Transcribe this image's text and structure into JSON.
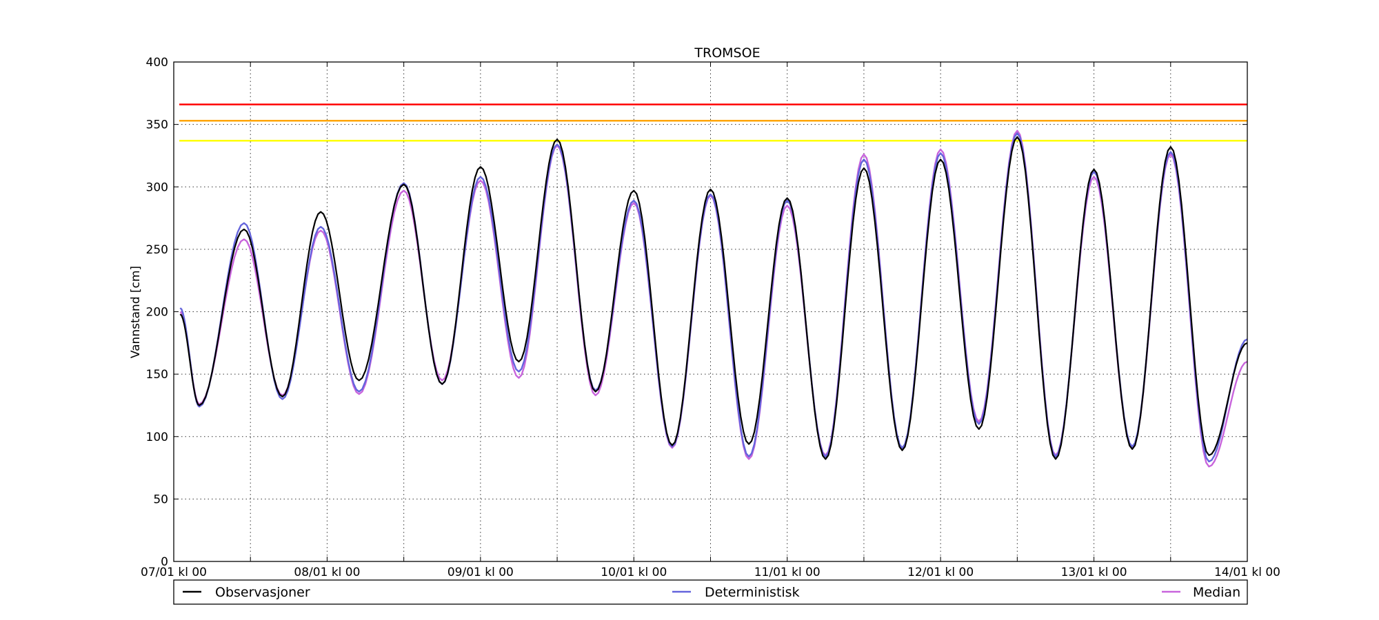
{
  "chart_data": {
    "type": "line",
    "title": "TROMSOE",
    "xlabel": "",
    "ylabel": "Vannstand [cm]",
    "ylim": [
      0,
      400
    ],
    "yticks": [
      0,
      50,
      100,
      150,
      200,
      250,
      300,
      350,
      400
    ],
    "xlim": [
      0,
      168
    ],
    "xticks": [
      {
        "value": 0,
        "label": "07/01 kl 00"
      },
      {
        "value": 24,
        "label": "08/01 kl 00"
      },
      {
        "value": 48,
        "label": "09/01 kl 00"
      },
      {
        "value": 72,
        "label": "10/01 kl 00"
      },
      {
        "value": 96,
        "label": "11/01 kl 00"
      },
      {
        "value": 120,
        "label": "12/01 kl 00"
      },
      {
        "value": 144,
        "label": "13/01 kl 00"
      },
      {
        "value": 168,
        "label": "14/01 kl 00"
      }
    ],
    "minor_xticks": [
      12,
      36,
      60,
      84,
      108,
      132,
      156
    ],
    "grid": true,
    "legend_position": "below",
    "thresholds": [
      {
        "value": 366,
        "color": "#ff0000"
      },
      {
        "value": 353,
        "color": "#ffa500"
      },
      {
        "value": 337,
        "color": "#ffff00"
      }
    ],
    "series": [
      {
        "name": "Observasjoner",
        "color": "#000000",
        "extrema": [
          [
            1,
            198
          ],
          [
            4,
            125
          ],
          [
            11,
            266
          ],
          [
            17,
            132
          ],
          [
            23,
            280
          ],
          [
            29,
            145
          ],
          [
            36,
            302
          ],
          [
            42,
            142
          ],
          [
            48,
            316
          ],
          [
            54,
            160
          ],
          [
            60,
            338
          ],
          [
            66,
            136
          ],
          [
            72,
            297
          ],
          [
            78,
            93
          ],
          [
            84,
            298
          ],
          [
            90,
            94
          ],
          [
            96,
            291
          ],
          [
            102,
            82
          ],
          [
            108,
            315
          ],
          [
            114,
            89
          ],
          [
            120,
            322
          ],
          [
            126,
            106
          ],
          [
            132,
            340
          ],
          [
            138,
            82
          ],
          [
            144,
            314
          ],
          [
            150,
            90
          ],
          [
            156,
            332
          ],
          [
            162,
            85
          ],
          [
            168,
            175
          ]
        ]
      },
      {
        "name": "Deterministisk",
        "color": "#6464dc",
        "extrema": [
          [
            1,
            203
          ],
          [
            4,
            124
          ],
          [
            11,
            271
          ],
          [
            17,
            130
          ],
          [
            23,
            268
          ],
          [
            29,
            136
          ],
          [
            36,
            303
          ],
          [
            42,
            142
          ],
          [
            48,
            308
          ],
          [
            54,
            152
          ],
          [
            60,
            334
          ],
          [
            66,
            137
          ],
          [
            72,
            289
          ],
          [
            78,
            92
          ],
          [
            84,
            294
          ],
          [
            90,
            84
          ],
          [
            96,
            289
          ],
          [
            102,
            84
          ],
          [
            108,
            322
          ],
          [
            114,
            91
          ],
          [
            120,
            327
          ],
          [
            126,
            110
          ],
          [
            132,
            343
          ],
          [
            138,
            84
          ],
          [
            144,
            312
          ],
          [
            150,
            92
          ],
          [
            156,
            328
          ],
          [
            162,
            80
          ],
          [
            168,
            178
          ]
        ]
      },
      {
        "name": "Median",
        "color": "#c864dc",
        "extrema": [
          [
            1,
            200
          ],
          [
            4,
            126
          ],
          [
            11,
            258
          ],
          [
            17,
            133
          ],
          [
            23,
            265
          ],
          [
            29,
            134
          ],
          [
            36,
            297
          ],
          [
            42,
            145
          ],
          [
            48,
            305
          ],
          [
            54,
            147
          ],
          [
            60,
            333
          ],
          [
            66,
            133
          ],
          [
            72,
            287
          ],
          [
            78,
            91
          ],
          [
            84,
            293
          ],
          [
            90,
            82
          ],
          [
            96,
            285
          ],
          [
            102,
            85
          ],
          [
            108,
            326
          ],
          [
            114,
            90
          ],
          [
            120,
            330
          ],
          [
            126,
            112
          ],
          [
            132,
            345
          ],
          [
            138,
            85
          ],
          [
            144,
            308
          ],
          [
            150,
            91
          ],
          [
            156,
            326
          ],
          [
            162,
            76
          ],
          [
            168,
            160
          ]
        ]
      }
    ]
  }
}
